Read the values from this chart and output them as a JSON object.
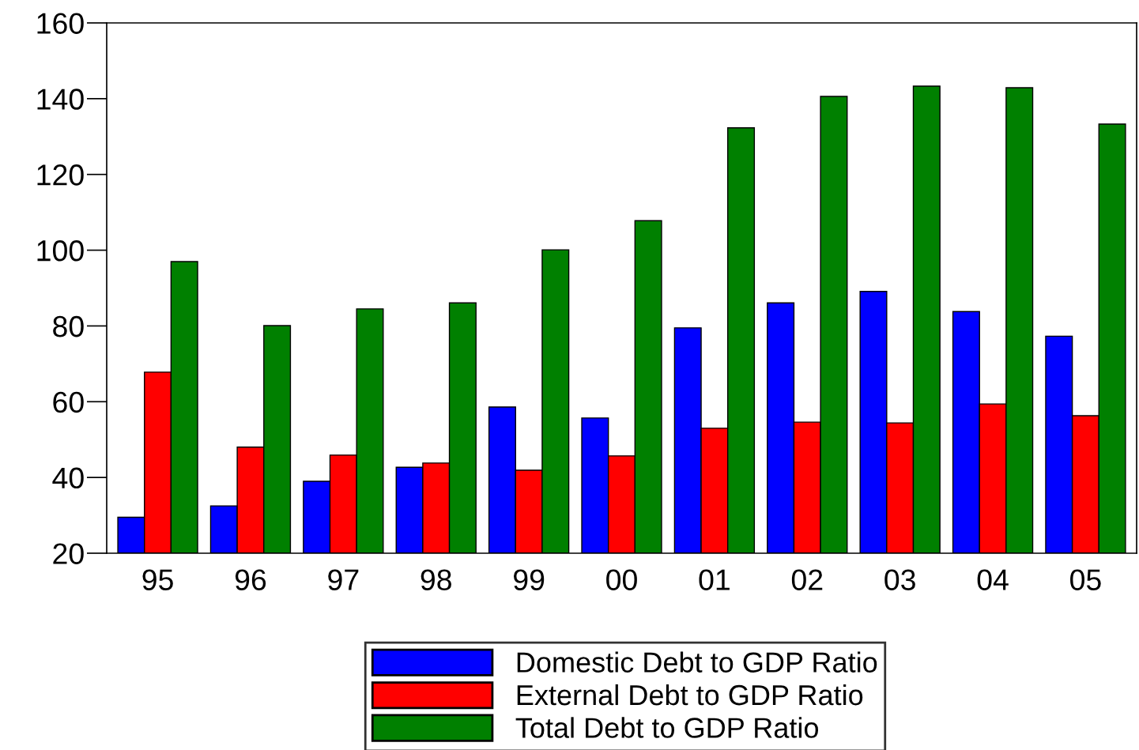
{
  "chart_data": {
    "type": "bar",
    "categories": [
      "95",
      "96",
      "97",
      "98",
      "99",
      "00",
      "01",
      "02",
      "03",
      "04",
      "05"
    ],
    "series": [
      {
        "name": "Domestic Debt to GDP Ratio",
        "color": "#0000ff",
        "values": [
          29.5,
          32.5,
          39,
          42.7,
          58.6,
          55.7,
          79.5,
          86.1,
          89.1,
          83.8,
          77.3
        ]
      },
      {
        "name": "External Debt to GDP Ratio",
        "color": "#ff0000",
        "values": [
          67.8,
          48,
          45.9,
          43.8,
          41.9,
          45.7,
          53,
          54.6,
          54.4,
          59.4,
          56.3
        ]
      },
      {
        "name": "Total Debt to GDP Ratio",
        "color": "#008000",
        "values": [
          97,
          80.1,
          84.5,
          86.1,
          100.1,
          107.8,
          132.3,
          140.6,
          143.3,
          142.9,
          133.3
        ]
      }
    ],
    "ylim": [
      20,
      160
    ],
    "yticks": [
      20,
      40,
      60,
      80,
      100,
      120,
      140,
      160
    ],
    "grid": false,
    "legend": "bottom"
  }
}
